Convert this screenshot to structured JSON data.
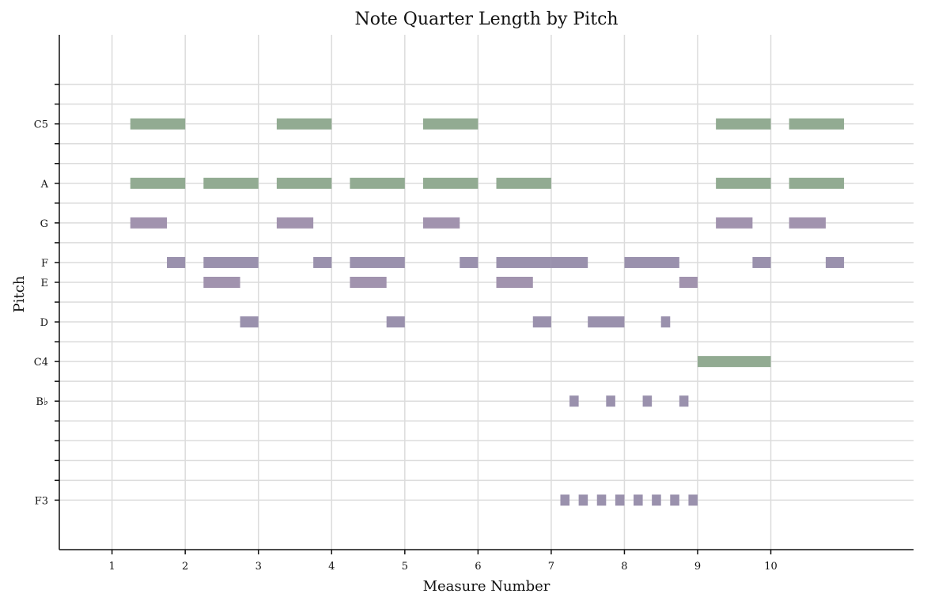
{
  "chart_data": {
    "type": "bar",
    "subtype": "piano-roll",
    "title": "Note Quarter Length by Pitch",
    "xlabel": "Measure Number",
    "ylabel": "Pitch",
    "x_ticks": [
      1,
      2,
      3,
      4,
      5,
      6,
      7,
      8,
      9,
      10
    ],
    "xlim": [
      0.28,
      11.95
    ],
    "ylim": [
      50.5,
      76.5
    ],
    "pitch_ticks": [
      {
        "midi": 53,
        "label": "F3"
      },
      {
        "midi": 54,
        "label": ""
      },
      {
        "midi": 55,
        "label": ""
      },
      {
        "midi": 56,
        "label": ""
      },
      {
        "midi": 57,
        "label": ""
      },
      {
        "midi": 58,
        "label": "B♭"
      },
      {
        "midi": 59,
        "label": ""
      },
      {
        "midi": 60,
        "label": "C4"
      },
      {
        "midi": 61,
        "label": ""
      },
      {
        "midi": 62,
        "label": "D"
      },
      {
        "midi": 63,
        "label": ""
      },
      {
        "midi": 64,
        "label": "E"
      },
      {
        "midi": 65,
        "label": "F"
      },
      {
        "midi": 66,
        "label": ""
      },
      {
        "midi": 67,
        "label": "G"
      },
      {
        "midi": 68,
        "label": ""
      },
      {
        "midi": 69,
        "label": "A"
      },
      {
        "midi": 70,
        "label": ""
      },
      {
        "midi": 71,
        "label": ""
      },
      {
        "midi": 72,
        "label": "C5"
      },
      {
        "midi": 73,
        "label": ""
      },
      {
        "midi": 74,
        "label": ""
      }
    ],
    "grid": true,
    "legend": "none",
    "colors": {
      "long": "#92ab92",
      "short": "#9a91ad",
      "medium": "#a193ae"
    },
    "notes": [
      {
        "pitch": 72,
        "start": 1.25,
        "end": 2.0,
        "color": "long"
      },
      {
        "pitch": 72,
        "start": 3.25,
        "end": 4.0,
        "color": "long"
      },
      {
        "pitch": 72,
        "start": 5.25,
        "end": 6.0,
        "color": "long"
      },
      {
        "pitch": 72,
        "start": 9.25,
        "end": 10.0,
        "color": "long"
      },
      {
        "pitch": 72,
        "start": 10.25,
        "end": 11.0,
        "color": "long"
      },
      {
        "pitch": 69,
        "start": 1.25,
        "end": 2.0,
        "color": "long"
      },
      {
        "pitch": 69,
        "start": 2.25,
        "end": 3.0,
        "color": "long"
      },
      {
        "pitch": 69,
        "start": 3.25,
        "end": 4.0,
        "color": "long"
      },
      {
        "pitch": 69,
        "start": 4.25,
        "end": 5.0,
        "color": "long"
      },
      {
        "pitch": 69,
        "start": 5.25,
        "end": 6.0,
        "color": "long"
      },
      {
        "pitch": 69,
        "start": 6.25,
        "end": 7.0,
        "color": "long"
      },
      {
        "pitch": 69,
        "start": 9.25,
        "end": 10.0,
        "color": "long"
      },
      {
        "pitch": 69,
        "start": 10.25,
        "end": 11.0,
        "color": "long"
      },
      {
        "pitch": 67,
        "start": 1.25,
        "end": 1.75,
        "color": "medium"
      },
      {
        "pitch": 67,
        "start": 3.25,
        "end": 3.75,
        "color": "medium"
      },
      {
        "pitch": 67,
        "start": 5.25,
        "end": 5.75,
        "color": "medium"
      },
      {
        "pitch": 67,
        "start": 9.25,
        "end": 9.75,
        "color": "medium"
      },
      {
        "pitch": 67,
        "start": 10.25,
        "end": 10.75,
        "color": "medium"
      },
      {
        "pitch": 65,
        "start": 1.75,
        "end": 2.0,
        "color": "short"
      },
      {
        "pitch": 65,
        "start": 2.25,
        "end": 3.0,
        "color": "short"
      },
      {
        "pitch": 65,
        "start": 3.75,
        "end": 4.0,
        "color": "short"
      },
      {
        "pitch": 65,
        "start": 4.25,
        "end": 5.0,
        "color": "short"
      },
      {
        "pitch": 65,
        "start": 5.75,
        "end": 6.0,
        "color": "short"
      },
      {
        "pitch": 65,
        "start": 6.25,
        "end": 7.0,
        "color": "short"
      },
      {
        "pitch": 65,
        "start": 7.0,
        "end": 7.5,
        "color": "short"
      },
      {
        "pitch": 65,
        "start": 8.0,
        "end": 8.75,
        "color": "short"
      },
      {
        "pitch": 65,
        "start": 9.75,
        "end": 10.0,
        "color": "short"
      },
      {
        "pitch": 65,
        "start": 10.75,
        "end": 11.0,
        "color": "short"
      },
      {
        "pitch": 64,
        "start": 2.25,
        "end": 2.75,
        "color": "medium"
      },
      {
        "pitch": 64,
        "start": 4.25,
        "end": 4.75,
        "color": "medium"
      },
      {
        "pitch": 64,
        "start": 6.25,
        "end": 6.75,
        "color": "medium"
      },
      {
        "pitch": 64,
        "start": 8.75,
        "end": 9.0,
        "color": "medium"
      },
      {
        "pitch": 62,
        "start": 2.75,
        "end": 3.0,
        "color": "short"
      },
      {
        "pitch": 62,
        "start": 4.75,
        "end": 5.0,
        "color": "short"
      },
      {
        "pitch": 62,
        "start": 6.75,
        "end": 7.0,
        "color": "short"
      },
      {
        "pitch": 62,
        "start": 7.5,
        "end": 8.0,
        "color": "short"
      },
      {
        "pitch": 62,
        "start": 8.5,
        "end": 8.625,
        "color": "short"
      },
      {
        "pitch": 60,
        "start": 9.0,
        "end": 10.0,
        "color": "long"
      },
      {
        "pitch": 58,
        "start": 7.25,
        "end": 7.375,
        "color": "short"
      },
      {
        "pitch": 58,
        "start": 7.75,
        "end": 7.875,
        "color": "short"
      },
      {
        "pitch": 58,
        "start": 8.25,
        "end": 8.375,
        "color": "short"
      },
      {
        "pitch": 58,
        "start": 8.75,
        "end": 8.875,
        "color": "short"
      },
      {
        "pitch": 53,
        "start": 7.125,
        "end": 7.25,
        "color": "short"
      },
      {
        "pitch": 53,
        "start": 7.375,
        "end": 7.5,
        "color": "short"
      },
      {
        "pitch": 53,
        "start": 7.625,
        "end": 7.75,
        "color": "short"
      },
      {
        "pitch": 53,
        "start": 7.875,
        "end": 8.0,
        "color": "short"
      },
      {
        "pitch": 53,
        "start": 8.125,
        "end": 8.25,
        "color": "short"
      },
      {
        "pitch": 53,
        "start": 8.375,
        "end": 8.5,
        "color": "short"
      },
      {
        "pitch": 53,
        "start": 8.625,
        "end": 8.75,
        "color": "short"
      },
      {
        "pitch": 53,
        "start": 8.875,
        "end": 9.0,
        "color": "short"
      }
    ]
  }
}
